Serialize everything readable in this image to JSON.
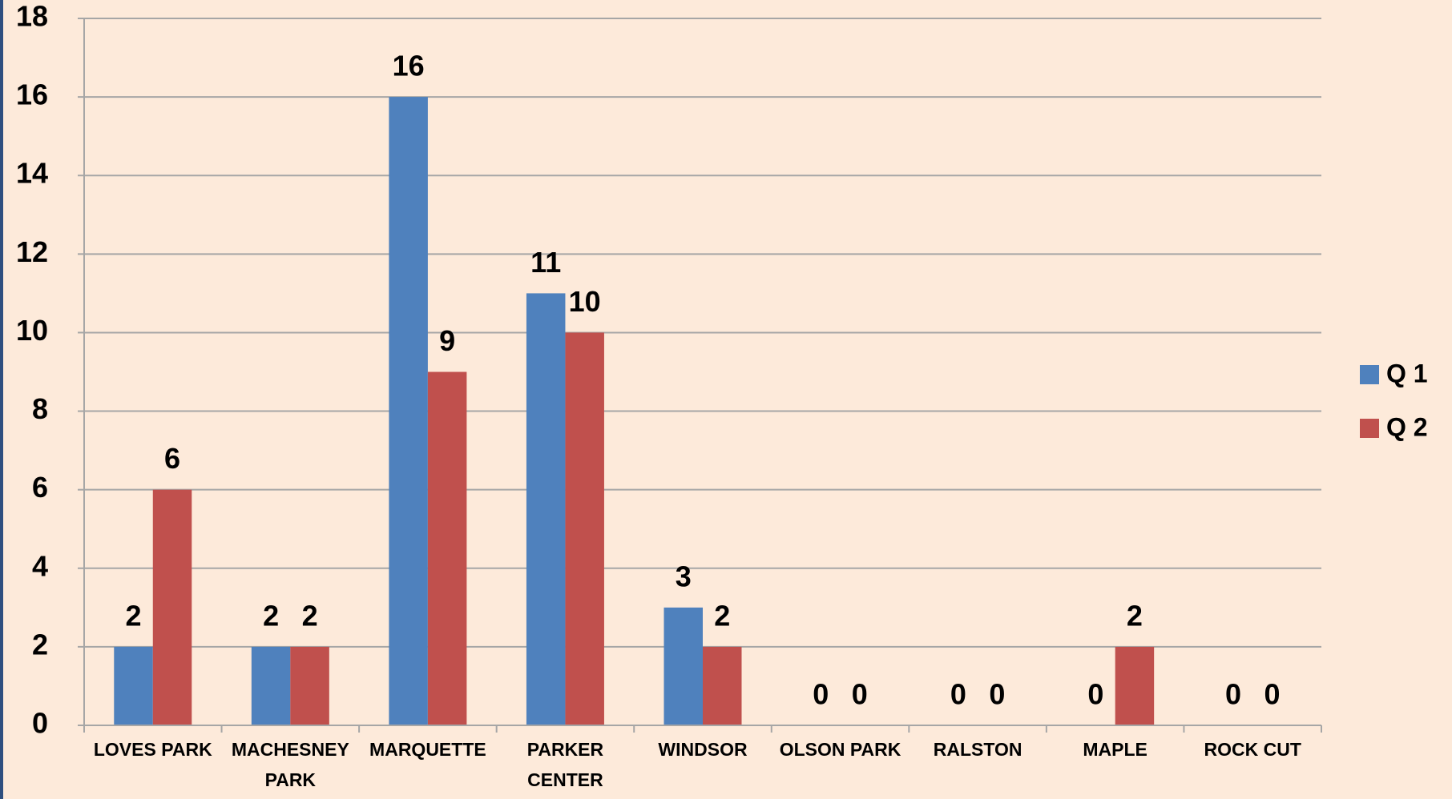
{
  "chart_data": {
    "type": "bar",
    "categories": [
      "LOVES PARK",
      "MACHESNEY PARK",
      "MARQUETTE",
      "PARKER CENTER",
      "WINDSOR",
      "OLSON PARK",
      "RALSTON",
      "MAPLE",
      "ROCK CUT"
    ],
    "series": [
      {
        "name": "Q 1",
        "color": "#4f81bd",
        "values": [
          2,
          2,
          16,
          11,
          3,
          0,
          0,
          0,
          0
        ]
      },
      {
        "name": "Q 2",
        "color": "#c0504d",
        "values": [
          6,
          2,
          9,
          10,
          2,
          0,
          0,
          2,
          0
        ]
      }
    ],
    "ylim": [
      0,
      18
    ],
    "yticks": [
      0,
      2,
      4,
      6,
      8,
      10,
      12,
      14,
      16,
      18
    ],
    "grid": true,
    "legend": "right"
  }
}
